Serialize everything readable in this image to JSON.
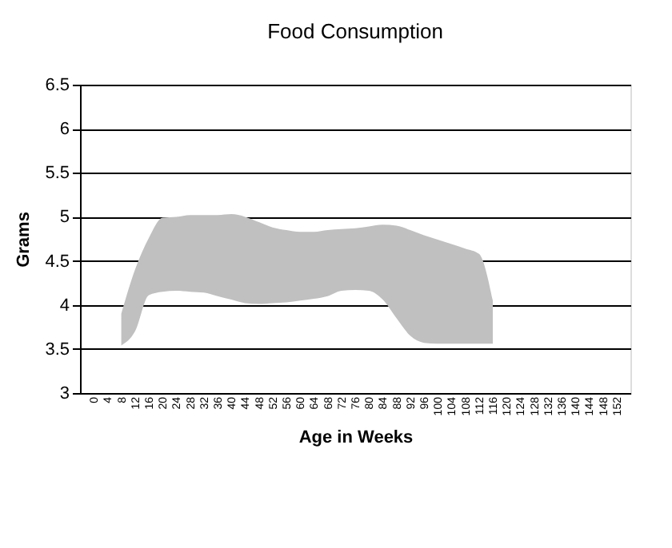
{
  "chart_data": {
    "type": "area",
    "title": "Food Consumption",
    "xlabel": "Age in Weeks",
    "ylabel": "Grams",
    "categories": [
      "0",
      "4",
      "8",
      "12",
      "16",
      "20",
      "24",
      "28",
      "32",
      "36",
      "40",
      "44",
      "48",
      "52",
      "56",
      "60",
      "64",
      "68",
      "72",
      "76",
      "80",
      "84",
      "88",
      "92",
      "96",
      "100",
      "104",
      "108",
      "112",
      "116",
      "120",
      "124",
      "128",
      "132",
      "136",
      "140",
      "144",
      "148",
      "152"
    ],
    "series": [
      {
        "color": "#c0c0c0",
        "values": [
          null,
          null,
          null,
          null,
          null,
          null,
          null,
          null,
          null,
          null,
          null,
          null,
          null,
          null,
          null,
          null,
          null,
          null,
          null,
          null,
          null,
          null,
          null,
          null,
          null,
          null,
          null,
          null,
          null,
          null,
          null,
          null,
          null,
          null,
          null,
          null,
          null,
          null,
          null
        ],
        "lower": [
          null,
          null,
          3.54,
          3.7,
          4.11,
          4.15,
          4.16,
          4.15,
          4.14,
          4.1,
          4.06,
          4.02,
          4.01,
          4.02,
          4.03,
          4.05,
          4.07,
          4.1,
          4.16,
          4.17,
          4.16,
          4.06,
          3.85,
          3.65,
          3.57,
          3.56,
          3.56,
          3.56,
          3.56,
          3.56,
          null,
          null,
          null,
          null,
          null,
          null,
          null,
          null,
          null
        ],
        "upper": [
          null,
          null,
          3.9,
          4.4,
          4.76,
          4.99,
          5.0,
          5.02,
          5.02,
          5.02,
          5.03,
          5.0,
          4.94,
          4.88,
          4.85,
          4.83,
          4.83,
          4.85,
          4.86,
          4.87,
          4.89,
          4.91,
          4.9,
          4.85,
          4.79,
          4.74,
          4.69,
          4.64,
          4.58,
          4.05,
          null,
          null,
          null,
          null,
          null,
          null,
          null,
          null,
          null
        ]
      }
    ],
    "ylim": [
      3,
      6.5
    ],
    "yticks": [
      3,
      3.5,
      4,
      4.5,
      5,
      5.5,
      6,
      6.5
    ],
    "grid": "y"
  }
}
